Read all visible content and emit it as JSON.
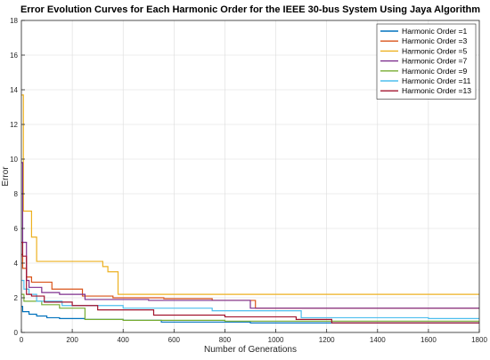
{
  "chart_data": {
    "type": "line",
    "title": "Error Evolution Curves for Each Harmonic Order for the IEEE 30-bus System Using Jaya Algorithm",
    "xlabel": "Number of Generations",
    "ylabel": "Error",
    "xlim": [
      0,
      1800
    ],
    "ylim": [
      0,
      18
    ],
    "xticks": [
      0,
      200,
      400,
      600,
      800,
      1000,
      1200,
      1400,
      1600,
      1800
    ],
    "yticks": [
      0,
      2,
      4,
      6,
      8,
      10,
      12,
      14,
      16,
      18
    ],
    "grid": true,
    "legend_position": "top-right",
    "step": true,
    "series": [
      {
        "name": "Harmonic Order =1",
        "color": "#0072BD",
        "points": [
          [
            0,
            1.5
          ],
          [
            5,
            1.2
          ],
          [
            30,
            1.05
          ],
          [
            60,
            0.95
          ],
          [
            100,
            0.85
          ],
          [
            150,
            0.8
          ],
          [
            250,
            0.75
          ],
          [
            400,
            0.7
          ],
          [
            550,
            0.6
          ],
          [
            900,
            0.55
          ],
          [
            1800,
            0.55
          ]
        ]
      },
      {
        "name": "Harmonic Order =3",
        "color": "#D95319",
        "points": [
          [
            0,
            4.5
          ],
          [
            5,
            3.7
          ],
          [
            20,
            3.2
          ],
          [
            40,
            2.9
          ],
          [
            120,
            2.5
          ],
          [
            240,
            2.1
          ],
          [
            360,
            2.0
          ],
          [
            560,
            1.95
          ],
          [
            750,
            1.85
          ],
          [
            920,
            1.4
          ],
          [
            1800,
            1.4
          ]
        ]
      },
      {
        "name": "Harmonic Order =5",
        "color": "#EDB120",
        "points": [
          [
            0,
            13.7
          ],
          [
            8,
            7.0
          ],
          [
            40,
            5.5
          ],
          [
            60,
            4.1
          ],
          [
            230,
            4.1
          ],
          [
            320,
            3.8
          ],
          [
            340,
            3.5
          ],
          [
            380,
            2.2
          ],
          [
            1800,
            2.2
          ]
        ]
      },
      {
        "name": "Harmonic Order =7",
        "color": "#7E2F8E",
        "points": [
          [
            0,
            9.8
          ],
          [
            5,
            5.2
          ],
          [
            20,
            3.0
          ],
          [
            30,
            2.6
          ],
          [
            80,
            2.3
          ],
          [
            150,
            2.2
          ],
          [
            250,
            1.9
          ],
          [
            500,
            1.85
          ],
          [
            900,
            1.4
          ],
          [
            1800,
            1.4
          ]
        ]
      },
      {
        "name": "Harmonic Order =9",
        "color": "#77AC30",
        "points": [
          [
            0,
            2.2
          ],
          [
            10,
            1.8
          ],
          [
            80,
            1.6
          ],
          [
            150,
            1.4
          ],
          [
            250,
            0.75
          ],
          [
            400,
            0.7
          ],
          [
            800,
            0.65
          ],
          [
            1800,
            0.65
          ]
        ]
      },
      {
        "name": "Harmonic Order =11",
        "color": "#4DBEEE",
        "points": [
          [
            0,
            3.0
          ],
          [
            10,
            2.5
          ],
          [
            30,
            2.2
          ],
          [
            60,
            1.8
          ],
          [
            160,
            1.55
          ],
          [
            400,
            1.4
          ],
          [
            750,
            1.25
          ],
          [
            1100,
            0.85
          ],
          [
            1600,
            0.8
          ],
          [
            1800,
            0.8
          ]
        ]
      },
      {
        "name": "Harmonic Order =13",
        "color": "#A2142F",
        "points": [
          [
            0,
            5.2
          ],
          [
            5,
            4.4
          ],
          [
            20,
            2.2
          ],
          [
            40,
            2.1
          ],
          [
            90,
            1.75
          ],
          [
            200,
            1.55
          ],
          [
            300,
            1.3
          ],
          [
            520,
            1.0
          ],
          [
            800,
            0.9
          ],
          [
            1080,
            0.75
          ],
          [
            1220,
            0.55
          ],
          [
            1800,
            0.55
          ]
        ]
      }
    ]
  }
}
